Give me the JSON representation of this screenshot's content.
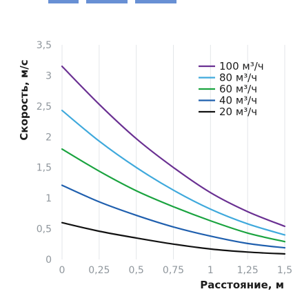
{
  "chart_data": {
    "type": "line",
    "title": "",
    "xlabel": "Расстояние, м",
    "ylabel": "Скорость, м/с",
    "x": [
      0,
      0.25,
      0.5,
      0.75,
      1,
      1.25,
      1.5
    ],
    "x_ticks": [
      "0",
      "0,25",
      "0,5",
      "0,75",
      "1",
      "1,25",
      "1,5"
    ],
    "y_ticks": [
      "0",
      "0,5",
      "1",
      "1,5",
      "2",
      "2,5",
      "3",
      "3,5"
    ],
    "xlim": [
      0,
      1.5
    ],
    "ylim": [
      0,
      3.5
    ],
    "grid": "vertical",
    "legend_position": "top-right",
    "series": [
      {
        "name": "100 м³/ч",
        "color": "#6a3092",
        "values": [
          3.15,
          2.53,
          1.97,
          1.5,
          1.09,
          0.78,
          0.54
        ]
      },
      {
        "name": "80 м³/ч",
        "color": "#3fa9dc",
        "values": [
          2.43,
          1.93,
          1.5,
          1.13,
          0.82,
          0.58,
          0.4
        ]
      },
      {
        "name": "60 м³/ч",
        "color": "#1aa33f",
        "values": [
          1.8,
          1.44,
          1.12,
          0.86,
          0.63,
          0.43,
          0.29
        ]
      },
      {
        "name": "40 м³/ч",
        "color": "#1f5fae",
        "values": [
          1.21,
          0.94,
          0.72,
          0.53,
          0.38,
          0.26,
          0.19
        ]
      },
      {
        "name": "20 м³/ч",
        "color": "#111111",
        "values": [
          0.6,
          0.46,
          0.35,
          0.25,
          0.17,
          0.12,
          0.09
        ]
      }
    ]
  }
}
